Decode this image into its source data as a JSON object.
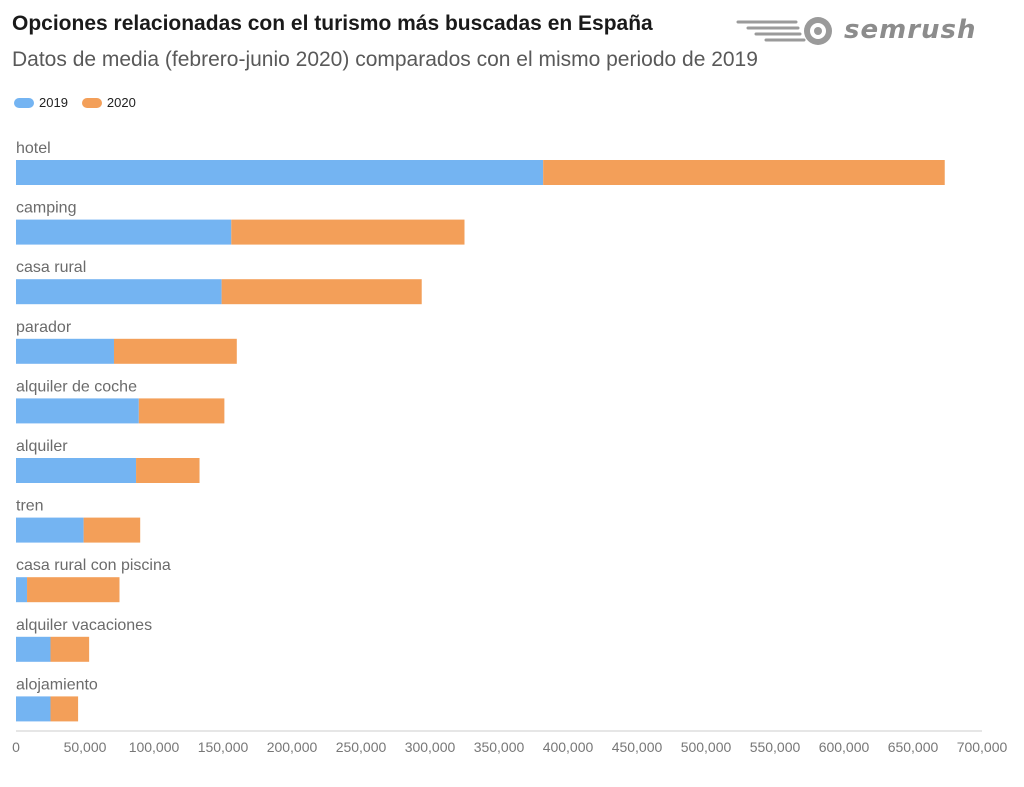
{
  "header": {
    "title": "Opciones relacionadas con el turismo más buscadas en España",
    "subtitle": "Datos de media (febrero-junio 2020) comparados con el mismo periodo de 2019",
    "logo_text": "semrush",
    "logo_icon": "semrush-fireball-icon"
  },
  "colors": {
    "series_2019": "#74b4f2",
    "series_2020": "#f39f59",
    "axis": "#cccccc"
  },
  "chart_data": {
    "type": "bar",
    "orientation": "horizontal",
    "stacked": true,
    "title": "Opciones relacionadas con el turismo más buscadas en España",
    "subtitle": "Datos de media (febrero-junio 2020) comparados con el mismo periodo de 2019",
    "categories": [
      "hotel",
      "camping",
      "casa rural",
      "parador",
      "alquiler de coche",
      "alquiler",
      "tren",
      "casa rural con piscina",
      "alquiler vacaciones",
      "alojamiento"
    ],
    "series": [
      {
        "name": "2019",
        "values": [
          382000,
          156000,
          149000,
          71000,
          89000,
          87000,
          49000,
          8000,
          25000,
          25000
        ]
      },
      {
        "name": "2020",
        "values": [
          291000,
          169000,
          145000,
          89000,
          62000,
          46000,
          41000,
          67000,
          28000,
          20000
        ]
      }
    ],
    "xlim": [
      0,
      700000
    ],
    "xticks": [
      0,
      50000,
      100000,
      150000,
      200000,
      250000,
      300000,
      350000,
      400000,
      450000,
      500000,
      550000,
      600000,
      650000,
      700000
    ],
    "xtick_labels": [
      "0",
      "50,000",
      "100,000",
      "150,000",
      "200,000",
      "250,000",
      "300,000",
      "350,000",
      "400,000",
      "450,000",
      "500,000",
      "550,000",
      "600,000",
      "650,000",
      "700,000"
    ],
    "legend_position": "top-left",
    "grid": false
  }
}
